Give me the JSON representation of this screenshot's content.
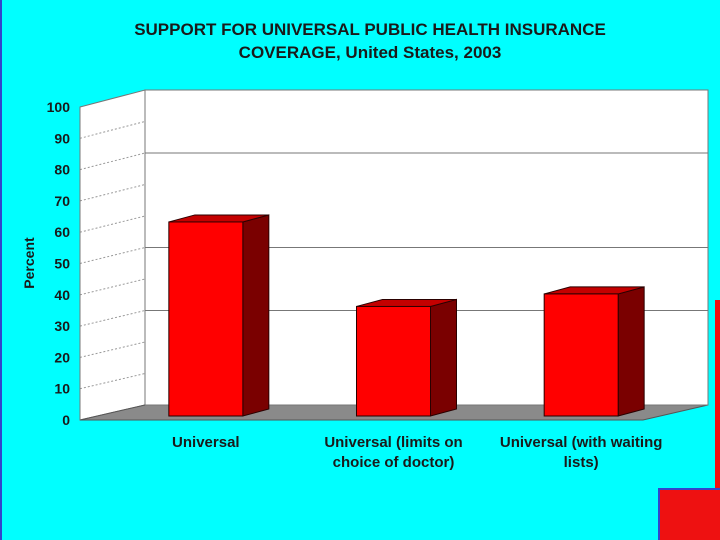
{
  "title_line1": "SUPPORT FOR UNIVERSAL PUBLIC HEALTH INSURANCE",
  "title_line2": "COVERAGE, United States, 2003",
  "colors": {
    "background": "#00ffff",
    "bar_front": "#ff0000",
    "bar_side": "#7a0000",
    "bar_top": "#c40000",
    "floor": "#8a8a8a"
  },
  "chart_data": {
    "type": "bar",
    "title": "SUPPORT FOR UNIVERSAL PUBLIC HEALTH INSURANCE COVERAGE, United States, 2003",
    "xlabel": "",
    "ylabel": "Percent",
    "ylim": [
      0,
      100
    ],
    "yticks": [
      "0",
      "10",
      "20",
      "30",
      "40",
      "50",
      "60",
      "70",
      "80",
      "90",
      "100"
    ],
    "categories": [
      "Universal",
      "Universal (limits on choice of doctor)",
      "Universal (with waiting lists)"
    ],
    "category_lines": [
      [
        "Universal"
      ],
      [
        "Universal (limits on",
        "choice of doctor)"
      ],
      [
        "Universal (with waiting",
        "lists)"
      ]
    ],
    "values": [
      62,
      35,
      39
    ],
    "grid": true,
    "style": "3d"
  }
}
